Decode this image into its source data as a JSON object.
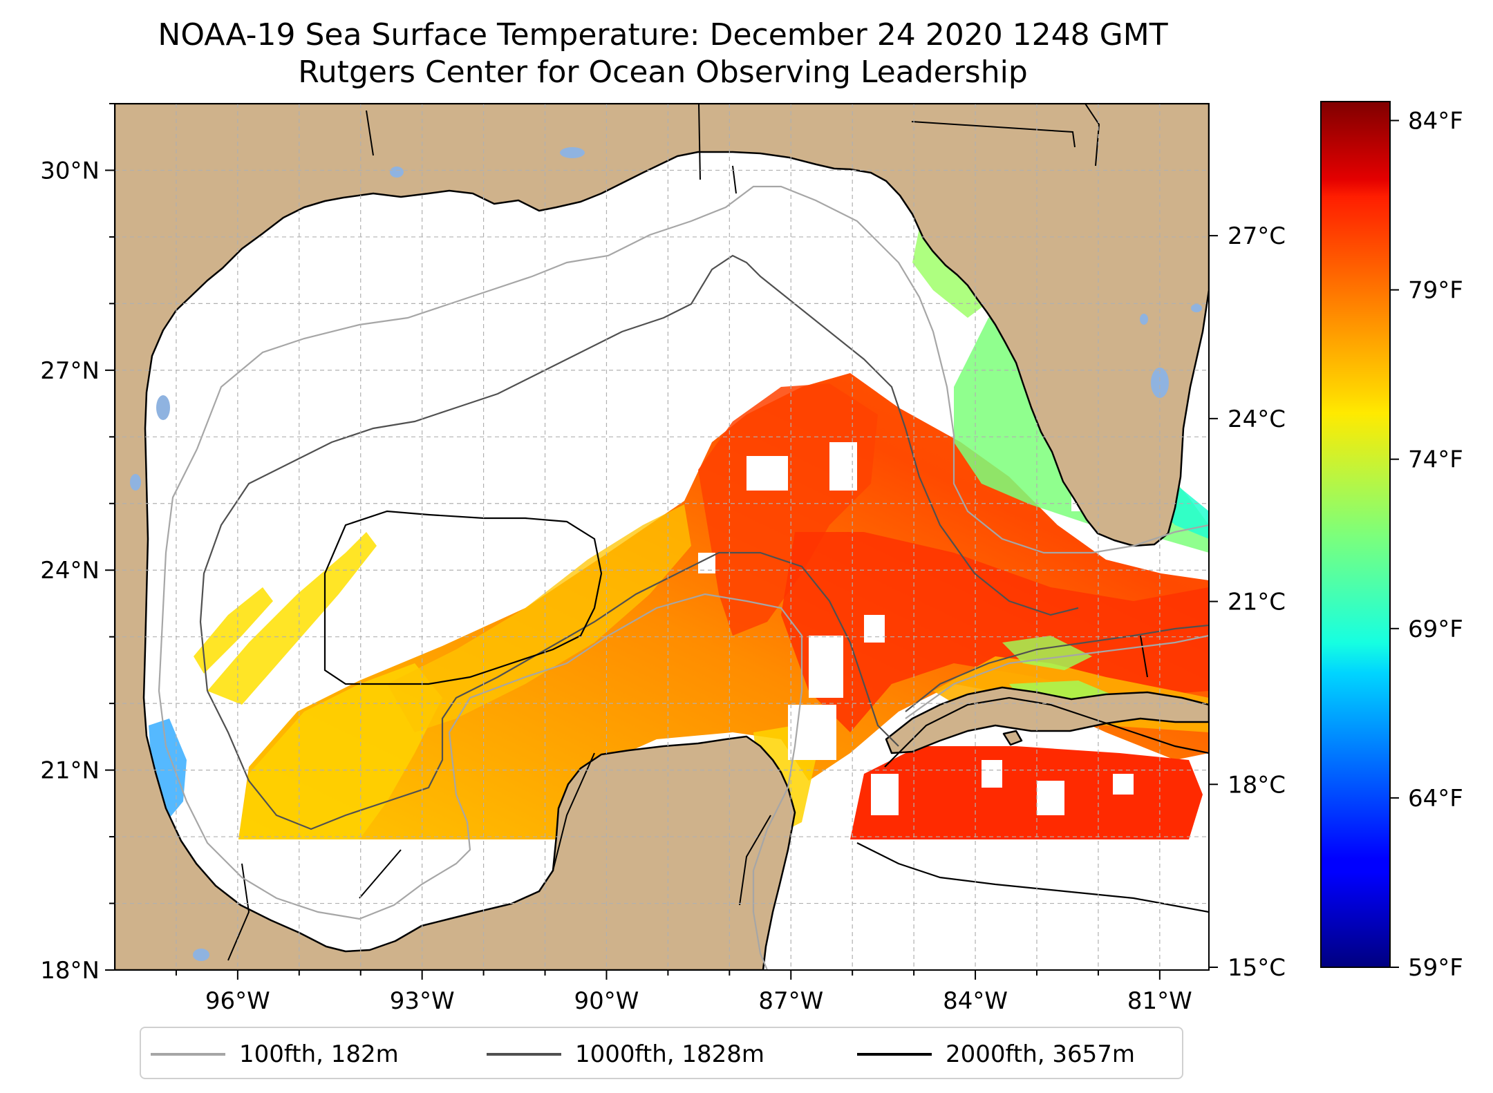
{
  "title": {
    "line1": "NOAA-19 Sea Surface Temperature: December 24 2020 1248 GMT",
    "line2": "Rutgers Center for Ocean Observing Leadership"
  },
  "map": {
    "region": "Gulf of Mexico",
    "lon_range": [
      -98,
      -80.2
    ],
    "lat_range": [
      18,
      31
    ],
    "gridlines": true,
    "land_color": "#cfb28b",
    "lon_ticks": [
      {
        "value": -96,
        "label": "96°W"
      },
      {
        "value": -93,
        "label": "93°W"
      },
      {
        "value": -90,
        "label": "90°W"
      },
      {
        "value": -87,
        "label": "87°W"
      },
      {
        "value": -84,
        "label": "84°W"
      },
      {
        "value": -81,
        "label": "81°W"
      }
    ],
    "lat_ticks": [
      {
        "value": 30,
        "label": "30°N"
      },
      {
        "value": 27,
        "label": "27°N"
      },
      {
        "value": 24,
        "label": "24°N"
      },
      {
        "value": 21,
        "label": "21°N"
      },
      {
        "value": 18,
        "label": "18°N"
      }
    ]
  },
  "colorbar": {
    "colormap": "jet",
    "range_c": [
      15,
      29.2
    ],
    "celsius_ticks": [
      {
        "value": 27,
        "label": "27°C"
      },
      {
        "value": 24,
        "label": "24°C"
      },
      {
        "value": 21,
        "label": "21°C"
      },
      {
        "value": 18,
        "label": "18°C"
      },
      {
        "value": 15,
        "label": "15°C"
      }
    ],
    "fahrenheit_ticks": [
      {
        "value": 84,
        "label": "84°F"
      },
      {
        "value": 79,
        "label": "79°F"
      },
      {
        "value": 74,
        "label": "74°F"
      },
      {
        "value": 69,
        "label": "69°F"
      },
      {
        "value": 64,
        "label": "64°F"
      },
      {
        "value": 59,
        "label": "59°F"
      }
    ]
  },
  "legend": {
    "placement": "bottom-center",
    "items": [
      {
        "label": "100fth, 182m",
        "color": "#a6a6a6"
      },
      {
        "label": "1000fth, 1828m",
        "color": "#505050"
      },
      {
        "label": "2000fth, 3657m",
        "color": "#000000"
      }
    ]
  },
  "icons": [
    "legend-line-swatch"
  ]
}
